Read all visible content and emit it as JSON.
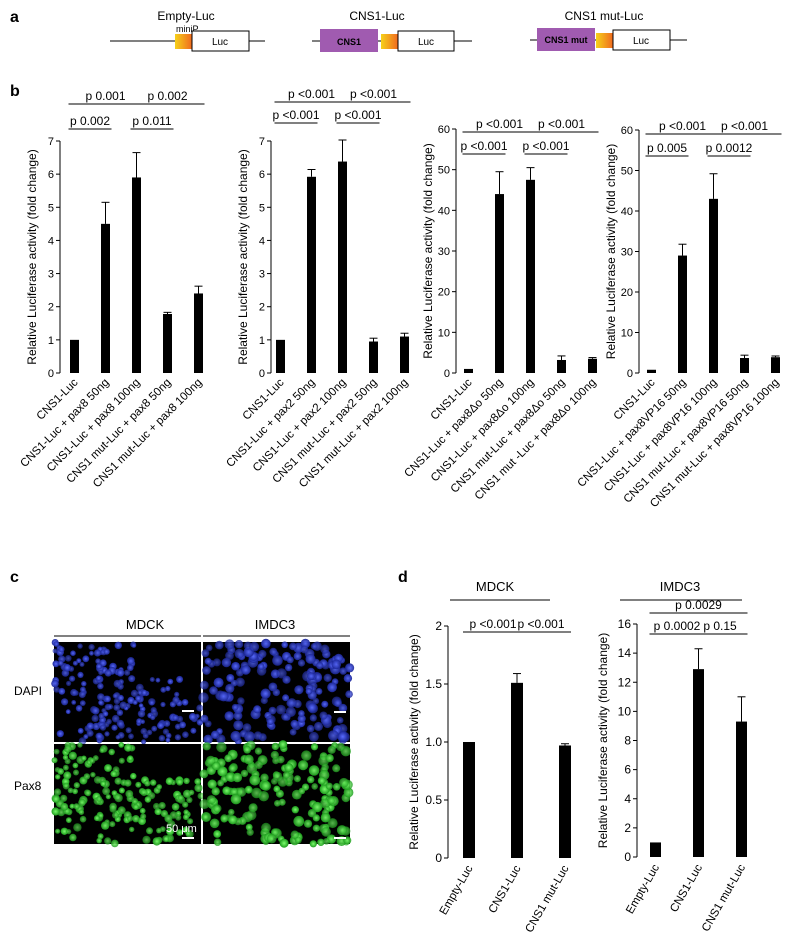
{
  "panel_letters": {
    "a": "a",
    "b": "b",
    "c": "c",
    "d": "d"
  },
  "colors": {
    "bar": "#000000",
    "cns_box": "#a05bb0",
    "minip_light": "#f6d11a",
    "minip_dark": "#f06a1f",
    "dapi": "#2030b8",
    "pax8": "#2ec12e"
  },
  "constructs": [
    {
      "title": "Empty-Luc",
      "minip_label": "miniP",
      "luc_label": "Luc",
      "cns_label": ""
    },
    {
      "title": "CNS1-Luc",
      "minip_label": "",
      "luc_label": "Luc",
      "cns_label": "CNS1"
    },
    {
      "title": "CNS1 mut-Luc",
      "minip_label": "",
      "luc_label": "Luc",
      "cns_label": "CNS1 mut"
    }
  ],
  "panel_c": {
    "headers": [
      "MDCK",
      "IMDC3"
    ],
    "row_labels": [
      "DAPI",
      "Pax8"
    ],
    "scale_label": "50 μm"
  },
  "chart_data": [
    {
      "type": "bar",
      "panel": "b",
      "ylabel": "Relative Luciferase activity (fold change)",
      "ylim": [
        0,
        7
      ],
      "yticks": [
        0,
        1,
        2,
        3,
        4,
        5,
        6,
        7
      ],
      "categories": [
        "CNS1-Luc",
        "CNS1-Luc + pax8 50ng",
        "CNS1-Luc + pax8 100ng",
        "CNS1 mut-Luc + pax8 50ng",
        "CNS1 mut-Luc + pax8 100ng"
      ],
      "values": [
        1.0,
        4.5,
        5.9,
        1.78,
        2.4
      ],
      "errors": [
        0.0,
        0.65,
        0.75,
        0.05,
        0.22
      ],
      "annotations": [
        {
          "text": "p 0.002",
          "from": 0,
          "to": 1,
          "level": 0
        },
        {
          "text": "p 0.011",
          "from": 2,
          "to": 3,
          "level": 0
        },
        {
          "text": "p 0.001",
          "from": 0,
          "to": 2,
          "level": 1
        },
        {
          "text": "p 0.002",
          "from": 2,
          "to": 4,
          "level": 1
        }
      ]
    },
    {
      "type": "bar",
      "panel": "b",
      "ylabel": "Relative Luciferase activity (fold change)",
      "ylim": [
        0,
        7
      ],
      "yticks": [
        0,
        1,
        2,
        3,
        4,
        5,
        6,
        7
      ],
      "categories": [
        "CNS1-Luc",
        "CNS1-Luc + pax2 50ng",
        "CNS1-Luc + pax2 100ng",
        "CNS1 mut-Luc + pax2 50ng",
        "CNS1 mut-Luc + pax2 100ng"
      ],
      "values": [
        1.0,
        5.92,
        6.38,
        0.95,
        1.1
      ],
      "errors": [
        0.0,
        0.22,
        0.65,
        0.1,
        0.1
      ],
      "annotations": [
        {
          "text": "p <0.001",
          "from": 0,
          "to": 1,
          "level": 0
        },
        {
          "text": "p <0.001",
          "from": 2,
          "to": 3,
          "level": 0
        },
        {
          "text": "p <0.001",
          "from": 0,
          "to": 2,
          "level": 1
        },
        {
          "text": "p <0.001",
          "from": 2,
          "to": 4,
          "level": 1
        }
      ]
    },
    {
      "type": "bar",
      "panel": "b",
      "ylabel": "Relative Luciferase activity (fold change)",
      "ylim": [
        0,
        60
      ],
      "yticks": [
        0,
        10,
        20,
        30,
        40,
        50,
        60
      ],
      "categories": [
        "CNS1-Luc",
        "CNS1-Luc + pax8Δo 50ng",
        "CNS1-Luc + pax8Δo 100ng",
        "CNS1 mut-Luc + pax8Δo 50ng",
        "CNS1 mut -Luc + pax8Δo 100ng"
      ],
      "values": [
        1.0,
        44.0,
        47.5,
        3.2,
        3.5
      ],
      "errors": [
        0.0,
        5.5,
        3.0,
        1.0,
        0.3
      ],
      "annotations": [
        {
          "text": "p <0.001",
          "from": 0,
          "to": 1,
          "level": 0
        },
        {
          "text": "p <0.001",
          "from": 2,
          "to": 3,
          "level": 0
        },
        {
          "text": "p <0.001",
          "from": 0,
          "to": 2,
          "level": 1
        },
        {
          "text": "p <0.001",
          "from": 2,
          "to": 4,
          "level": 1
        }
      ]
    },
    {
      "type": "bar",
      "panel": "b",
      "ylabel": "Relative Luciferase activity (fold change)",
      "ylim": [
        0,
        60
      ],
      "yticks": [
        0,
        10,
        20,
        30,
        40,
        50,
        60
      ],
      "categories": [
        "CNS1-Luc",
        "CNS1-Luc + pax8VP16 50ng",
        "CNS1-Luc + pax8VP16 100ng",
        "CNS1 mut-Luc + pax8VP16 50ng",
        "CNS1 mut-Luc + pax8VP16 100ng"
      ],
      "values": [
        0.8,
        29.0,
        43.0,
        3.7,
        3.9
      ],
      "errors": [
        0.0,
        2.8,
        6.2,
        0.7,
        0.3
      ],
      "annotations": [
        {
          "text": "p 0.005",
          "from": 0,
          "to": 1,
          "level": 0
        },
        {
          "text": "p 0.0012",
          "from": 2,
          "to": 3,
          "level": 0
        },
        {
          "text": "p <0.001",
          "from": 0,
          "to": 2,
          "level": 1
        },
        {
          "text": "p <0.001",
          "from": 2,
          "to": 4,
          "level": 1
        }
      ]
    },
    {
      "type": "bar",
      "panel": "d",
      "title": "MDCK",
      "ylabel": "Relative Luciferase activity (fold change)",
      "ylim": [
        0,
        2
      ],
      "yticks": [
        0,
        0.5,
        1.0,
        1.5,
        2
      ],
      "ytick_labels": [
        "0",
        "0.5",
        "1.0",
        "1.5",
        "2"
      ],
      "categories": [
        "Empty-Luc",
        "CNS1-Luc",
        "CNS1 mut-Luc"
      ],
      "values": [
        1.0,
        1.51,
        0.97
      ],
      "errors": [
        0.0,
        0.08,
        0.015
      ],
      "annotations": [
        {
          "text": "p <0.001",
          "from": 0,
          "to": 1,
          "level": 0
        },
        {
          "text": "p <0.001",
          "from": 1,
          "to": 2,
          "level": 0
        }
      ]
    },
    {
      "type": "bar",
      "panel": "d",
      "title": "IMDC3",
      "ylabel": "Relative Luciferase activity (fold change)",
      "ylim": [
        0,
        16
      ],
      "yticks": [
        0,
        2,
        4,
        6,
        8,
        10,
        12,
        14,
        16
      ],
      "categories": [
        "Empty-Luc",
        "CNS1-Luc",
        "CNS1 mut-Luc"
      ],
      "values": [
        1.0,
        12.9,
        9.3
      ],
      "errors": [
        0.0,
        1.4,
        1.7
      ],
      "annotations": [
        {
          "text": "p 0.0002",
          "from": 0,
          "to": 1,
          "level": 0
        },
        {
          "text": "p 0.15",
          "from": 1,
          "to": 2,
          "level": 0
        },
        {
          "text": "p 0.0029",
          "from": 0,
          "to": 2,
          "level": 1
        }
      ]
    }
  ]
}
